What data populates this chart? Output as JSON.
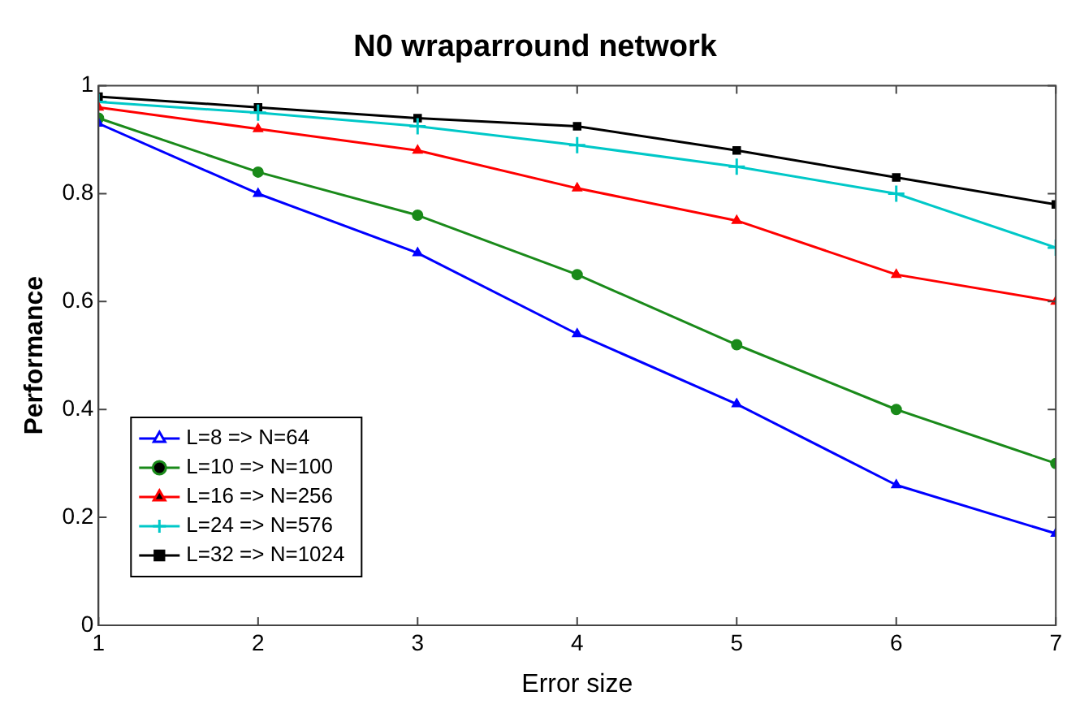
{
  "chart_data": {
    "type": "line",
    "title": "N0 wraparround network",
    "xlabel": "Error size",
    "ylabel": "Performance",
    "x": [
      1,
      2,
      3,
      4,
      5,
      6,
      7
    ],
    "series": [
      {
        "name": "L=8 => N=64",
        "color": "#0000ff",
        "marker": "triangle",
        "values": [
          0.93,
          0.8,
          0.69,
          0.54,
          0.41,
          0.26,
          0.17
        ]
      },
      {
        "name": "L=10 => N=100",
        "color": "#1a8a1a",
        "marker": "circle",
        "values": [
          0.94,
          0.84,
          0.76,
          0.65,
          0.52,
          0.4,
          0.3
        ]
      },
      {
        "name": "L=16 => N=256",
        "color": "#ff0000",
        "marker": "triangle",
        "values": [
          0.96,
          0.92,
          0.88,
          0.81,
          0.75,
          0.65,
          0.6
        ]
      },
      {
        "name": "L=24 => N=576",
        "color": "#00c8c8",
        "marker": "cross",
        "values": [
          0.97,
          0.95,
          0.925,
          0.89,
          0.85,
          0.8,
          0.7
        ]
      },
      {
        "name": "L=32 => N=1024",
        "color": "#000000",
        "marker": "square",
        "values": [
          0.98,
          0.96,
          0.94,
          0.925,
          0.88,
          0.83,
          0.78
        ]
      }
    ],
    "xlim": [
      1,
      7
    ],
    "xticks": [
      1,
      2,
      3,
      4,
      5,
      6,
      7
    ],
    "ylim": [
      0,
      1
    ],
    "yticks": [
      0,
      0.2,
      0.4,
      0.6,
      0.8,
      1
    ],
    "grid": false,
    "legend": "bottom left",
    "line_style": "solid"
  }
}
